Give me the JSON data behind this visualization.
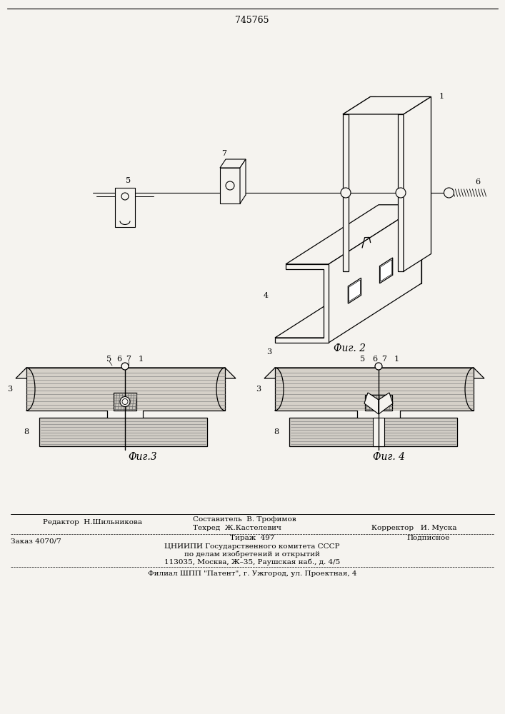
{
  "patent_number": "745765",
  "background_color": "#f5f3ef",
  "fig2_label": "Фиг. 2",
  "fig3_label": "Фиг.3",
  "fig4_label": "Фиг. 4",
  "footer_editor": "Редактор  Н.Шильникова",
  "footer_compiler": "Составитель  В. Трофимов",
  "footer_techred": "Техред  Ж.Кастелевич",
  "footer_corrector": "Корректор   И. Муска",
  "footer_order": "Заказ 4070/7",
  "footer_tirazh": "Тираж  497",
  "footer_podp": "Подписное",
  "footer_center1": "ЦНИИПИ Государственного комитета СССР",
  "footer_center2": "по делам изобретений и открытий",
  "footer_center3": "113035, Москва, Ж–35, Раушская наб., д. 4/5",
  "footer_bottom": "Филиал ШПП \"Патент\", г. Ужгород, ул. Проектная, 4"
}
